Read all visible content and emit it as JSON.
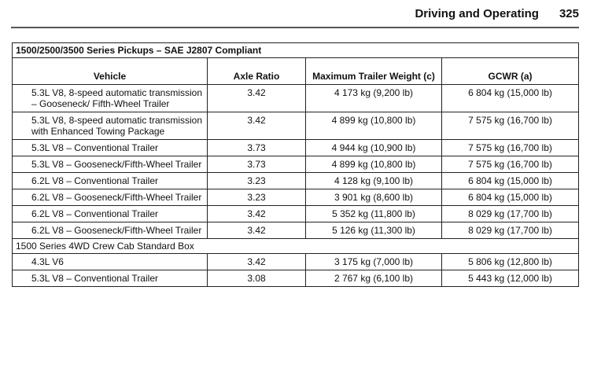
{
  "header": {
    "section": "Driving and Operating",
    "page_number": "325"
  },
  "table": {
    "title": "1500/2500/3500 Series Pickups – SAE J2807 Compliant",
    "columns": [
      "Vehicle",
      "Axle Ratio",
      "Maximum Trailer Weight (c)",
      "GCWR (a)"
    ],
    "group_label": "1500 Series 4WD Crew Cab Standard Box",
    "rows": [
      {
        "vehicle": "5.3L V8, 8-speed automatic transmission – Gooseneck/ Fifth-Wheel Trailer",
        "ratio": "3.42",
        "weight": "4 173 kg (9,200 lb)",
        "gcwr": "6 804 kg (15,000 lb)"
      },
      {
        "vehicle": "5.3L V8, 8-speed automatic transmission with Enhanced Towing Package",
        "ratio": "3.42",
        "weight": "4 899 kg (10,800 lb)",
        "gcwr": "7 575 kg (16,700 lb)"
      },
      {
        "vehicle": "5.3L V8 – Conventional Trailer",
        "ratio": "3.73",
        "weight": "4 944 kg (10,900 lb)",
        "gcwr": "7 575 kg (16,700 lb)"
      },
      {
        "vehicle": "5.3L V8 – Gooseneck/Fifth-Wheel Trailer",
        "ratio": "3.73",
        "weight": "4 899 kg (10,800 lb)",
        "gcwr": "7 575 kg (16,700 lb)"
      },
      {
        "vehicle": "6.2L V8 – Conventional Trailer",
        "ratio": "3.23",
        "weight": "4 128 kg (9,100 lb)",
        "gcwr": "6 804 kg (15,000 lb)"
      },
      {
        "vehicle": "6.2L V8 – Gooseneck/Fifth-Wheel Trailer",
        "ratio": "3.23",
        "weight": "3 901 kg (8,600 lb)",
        "gcwr": "6 804 kg (15,000 lb)"
      },
      {
        "vehicle": "6.2L V8 – Conventional Trailer",
        "ratio": "3.42",
        "weight": "5 352 kg (11,800 lb)",
        "gcwr": "8 029 kg (17,700 lb)"
      },
      {
        "vehicle": "6.2L V8 – Gooseneck/Fifth-Wheel Trailer",
        "ratio": "3.42",
        "weight": "5 126 kg (11,300 lb)",
        "gcwr": "8 029 kg (17,700 lb)"
      }
    ],
    "group_rows": [
      {
        "vehicle": "4.3L V6",
        "ratio": "3.42",
        "weight": "3 175 kg (7,000 lb)",
        "gcwr": "5 806 kg (12,800 lb)"
      },
      {
        "vehicle": "5.3L V8 – Conventional Trailer",
        "ratio": "3.08",
        "weight": "2 767 kg (6,100 lb)",
        "gcwr": "5 443 kg (12,000 lb)"
      }
    ]
  }
}
